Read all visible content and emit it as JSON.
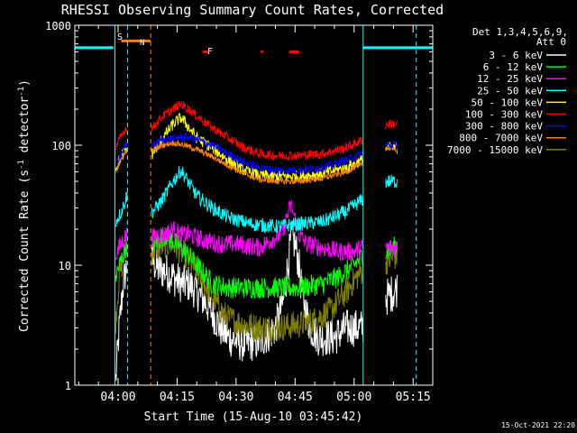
{
  "chart_data": {
    "type": "line",
    "title": "RHESSI Observing Summary Count Rates, Corrected",
    "xlabel": "Start Time (15-Aug-10 03:45:42)",
    "ylabel_parts": [
      "Corrected Count Rate (s",
      "-1",
      " detector",
      "-1",
      ")"
    ],
    "yscale": "log",
    "ylim": [
      1,
      1000
    ],
    "y_ticks": [
      {
        "value": 1,
        "label": "1"
      },
      {
        "value": 10,
        "label": "10"
      },
      {
        "value": 100,
        "label": "100"
      },
      {
        "value": 1000,
        "label": "1000"
      }
    ],
    "xlim_min": [
      -11.0,
      80.0
    ],
    "x_ticks": [
      {
        "min": 0,
        "label": "04:00"
      },
      {
        "min": 15,
        "label": "04:15"
      },
      {
        "min": 30,
        "label": "04:30"
      },
      {
        "min": 45,
        "label": "04:45"
      },
      {
        "min": 60,
        "label": "05:00"
      },
      {
        "min": 75,
        "label": "05:15"
      }
    ],
    "legend_header": [
      "Det 1,3,4,5,6,9,",
      "Att 0"
    ],
    "legend_position": "right",
    "data_gaps_min": [
      [
        2.4,
        8.5
      ],
      [
        62.3,
        68.0
      ]
    ],
    "series": [
      {
        "name": "3 - 6 keV",
        "color": "#ffffff",
        "noise": 0.16,
        "points": [
          [
            -0.6,
            1.1
          ],
          [
            0.3,
            3
          ],
          [
            1.2,
            6.5
          ],
          [
            2.2,
            10
          ],
          [
            8.8,
            11
          ],
          [
            9.5,
            10
          ],
          [
            10.5,
            9
          ],
          [
            12,
            9
          ],
          [
            14,
            8
          ],
          [
            16,
            7
          ],
          [
            18,
            7
          ],
          [
            20,
            6
          ],
          [
            22,
            5
          ],
          [
            24,
            4
          ],
          [
            26,
            3
          ],
          [
            28,
            2.5
          ],
          [
            32,
            2.2
          ],
          [
            36,
            2.3
          ],
          [
            40,
            3
          ],
          [
            42,
            5
          ],
          [
            43,
            9
          ],
          [
            44,
            17
          ],
          [
            45,
            15
          ],
          [
            46,
            10
          ],
          [
            47,
            5
          ],
          [
            49,
            3
          ],
          [
            51,
            2.5
          ],
          [
            55,
            2.5
          ],
          [
            58,
            3
          ],
          [
            60,
            3
          ],
          [
            62,
            3
          ],
          [
            68.5,
            5.5
          ],
          [
            70,
            6
          ],
          [
            71,
            6.5
          ]
        ]
      },
      {
        "name": "6 - 12 keV",
        "color": "#00ff00",
        "noise": 0.09,
        "points": [
          [
            -0.6,
            8
          ],
          [
            0.3,
            10
          ],
          [
            1.2,
            12
          ],
          [
            2.2,
            15
          ],
          [
            8.8,
            15
          ],
          [
            10,
            16
          ],
          [
            12,
            18
          ],
          [
            14,
            16
          ],
          [
            16,
            14
          ],
          [
            18,
            12
          ],
          [
            20,
            10
          ],
          [
            24,
            7
          ],
          [
            28,
            6.5
          ],
          [
            34,
            6.5
          ],
          [
            40,
            6.5
          ],
          [
            46,
            6.5
          ],
          [
            52,
            7
          ],
          [
            56,
            8
          ],
          [
            60,
            10
          ],
          [
            62,
            12
          ],
          [
            68.5,
            13
          ],
          [
            70,
            14
          ],
          [
            71,
            15
          ]
        ]
      },
      {
        "name": "12 - 25 keV",
        "color": "#ff00ff",
        "noise": 0.08,
        "points": [
          [
            -0.6,
            12
          ],
          [
            0.3,
            14
          ],
          [
            1.2,
            16
          ],
          [
            2.2,
            18
          ],
          [
            8.8,
            17
          ],
          [
            10,
            18
          ],
          [
            12,
            18
          ],
          [
            14,
            20
          ],
          [
            15,
            19
          ],
          [
            16,
            18
          ],
          [
            18,
            18
          ],
          [
            22,
            16
          ],
          [
            26,
            15
          ],
          [
            30,
            15
          ],
          [
            36,
            14
          ],
          [
            40,
            17
          ],
          [
            42,
            19
          ],
          [
            43,
            26
          ],
          [
            44,
            32
          ],
          [
            45,
            24
          ],
          [
            46,
            18
          ],
          [
            48,
            15
          ],
          [
            52,
            14
          ],
          [
            56,
            13
          ],
          [
            60,
            13
          ],
          [
            62,
            14
          ],
          [
            68.5,
            14
          ],
          [
            71,
            14
          ]
        ]
      },
      {
        "name": "25 - 50 keV",
        "color": "#00ffff",
        "noise": 0.06,
        "points": [
          [
            -0.6,
            23
          ],
          [
            0.3,
            26
          ],
          [
            1.2,
            30
          ],
          [
            2.2,
            38
          ],
          [
            8.8,
            28
          ],
          [
            11,
            34
          ],
          [
            14,
            50
          ],
          [
            16,
            62
          ],
          [
            17,
            55
          ],
          [
            20,
            38
          ],
          [
            24,
            30
          ],
          [
            28,
            25
          ],
          [
            34,
            22
          ],
          [
            40,
            21
          ],
          [
            46,
            22
          ],
          [
            52,
            23
          ],
          [
            58,
            28
          ],
          [
            62,
            35
          ],
          [
            66,
            45
          ],
          [
            68.5,
            50
          ],
          [
            71,
            50
          ]
        ]
      },
      {
        "name": "50 - 100 keV",
        "color": "#ffff00",
        "noise": 0.05,
        "points": [
          [
            -0.6,
            65
          ],
          [
            0.3,
            75
          ],
          [
            1.2,
            85
          ],
          [
            2.2,
            95
          ],
          [
            8.8,
            85
          ],
          [
            11,
            110
          ],
          [
            14,
            150
          ],
          [
            16,
            170
          ],
          [
            17,
            155
          ],
          [
            20,
            115
          ],
          [
            24,
            95
          ],
          [
            28,
            75
          ],
          [
            32,
            62
          ],
          [
            36,
            56
          ],
          [
            40,
            55
          ],
          [
            46,
            55
          ],
          [
            52,
            58
          ],
          [
            58,
            65
          ],
          [
            62,
            75
          ],
          [
            66,
            85
          ],
          [
            68.5,
            95
          ],
          [
            71,
            95
          ]
        ]
      },
      {
        "name": "100 - 300 keV",
        "color": "#ff0000",
        "noise": 0.04,
        "points": [
          [
            -0.6,
            95
          ],
          [
            0.3,
            110
          ],
          [
            1.2,
            125
          ],
          [
            2.2,
            140
          ],
          [
            8.8,
            140
          ],
          [
            11,
            170
          ],
          [
            14,
            200
          ],
          [
            16,
            220
          ],
          [
            17,
            210
          ],
          [
            20,
            175
          ],
          [
            24,
            140
          ],
          [
            28,
            115
          ],
          [
            32,
            95
          ],
          [
            36,
            85
          ],
          [
            40,
            82
          ],
          [
            46,
            82
          ],
          [
            52,
            85
          ],
          [
            58,
            95
          ],
          [
            62,
            110
          ],
          [
            66,
            130
          ],
          [
            68.5,
            150
          ],
          [
            71,
            150
          ]
        ]
      },
      {
        "name": "300 - 800 keV",
        "color": "#0000ff",
        "noise": 0.035,
        "points": [
          [
            -0.6,
            70
          ],
          [
            0.3,
            80
          ],
          [
            1.2,
            90
          ],
          [
            2.2,
            100
          ],
          [
            8.8,
            100
          ],
          [
            11,
            110
          ],
          [
            14,
            115
          ],
          [
            17,
            118
          ],
          [
            20,
            112
          ],
          [
            24,
            100
          ],
          [
            28,
            85
          ],
          [
            32,
            72
          ],
          [
            36,
            65
          ],
          [
            40,
            62
          ],
          [
            46,
            62
          ],
          [
            52,
            65
          ],
          [
            58,
            75
          ],
          [
            62,
            85
          ],
          [
            66,
            95
          ],
          [
            68.5,
            100
          ],
          [
            71,
            100
          ]
        ]
      },
      {
        "name": "800 - 7000 keV",
        "color": "#ff8000",
        "noise": 0.025,
        "points": [
          [
            -0.6,
            60
          ],
          [
            0.3,
            70
          ],
          [
            1.2,
            80
          ],
          [
            2.2,
            90
          ],
          [
            8.8,
            90
          ],
          [
            11,
            100
          ],
          [
            14,
            105
          ],
          [
            17,
            100
          ],
          [
            20,
            92
          ],
          [
            24,
            80
          ],
          [
            28,
            68
          ],
          [
            32,
            58
          ],
          [
            36,
            52
          ],
          [
            40,
            50
          ],
          [
            46,
            50
          ],
          [
            52,
            53
          ],
          [
            58,
            60
          ],
          [
            62,
            70
          ],
          [
            66,
            85
          ],
          [
            68.5,
            95
          ],
          [
            71,
            95
          ]
        ]
      },
      {
        "name": "7000 - 15000 keV",
        "color": "#808000",
        "noise": 0.12,
        "points": [
          [
            -0.6,
            3.5
          ],
          [
            0.3,
            8
          ],
          [
            1.2,
            11
          ],
          [
            2.2,
            14
          ],
          [
            8.8,
            13
          ],
          [
            10,
            14
          ],
          [
            12,
            15
          ],
          [
            14,
            15
          ],
          [
            16,
            13
          ],
          [
            18,
            11
          ],
          [
            20,
            9
          ],
          [
            22,
            7
          ],
          [
            24,
            5.5
          ],
          [
            26,
            4.2
          ],
          [
            28,
            3.6
          ],
          [
            32,
            3.2
          ],
          [
            36,
            3.0
          ],
          [
            40,
            3.0
          ],
          [
            46,
            3.2
          ],
          [
            50,
            3.5
          ],
          [
            54,
            4.2
          ],
          [
            58,
            6
          ],
          [
            60,
            7.5
          ],
          [
            62,
            9
          ],
          [
            68.5,
            11
          ],
          [
            71,
            12
          ]
        ]
      }
    ],
    "markers": [
      {
        "label": "S",
        "color": "#ff8000"
      },
      {
        "label": "N",
        "color": "#00ffff"
      },
      {
        "label": "F",
        "color": "#ff0000"
      }
    ],
    "saa_bars": [
      {
        "from": -11,
        "to": -1.2,
        "y": 650,
        "color": "#00ffff"
      },
      {
        "from": 62.3,
        "to": 80,
        "y": 650,
        "color": "#00ffff"
      },
      {
        "from": 0.8,
        "to": 8.3,
        "y": 740,
        "color": "#ff8000"
      },
      {
        "from": 21.5,
        "to": 23.0,
        "y": 600,
        "color": "#ff0000"
      },
      {
        "from": 36.3,
        "to": 37.0,
        "y": 600,
        "color": "#ff0000"
      },
      {
        "from": 43.5,
        "to": 46.0,
        "y": 600,
        "color": "#ff0000"
      }
    ],
    "solid_vlines": [
      {
        "x": -0.8,
        "color": "#00ffff"
      },
      {
        "x": 62.3,
        "color": "#00ffff"
      }
    ],
    "dashed_vlines": [
      {
        "x": 2.4,
        "color": "#00ffff"
      },
      {
        "x": 8.3,
        "color": "#ff8000"
      },
      {
        "x": 75.8,
        "color": "#00ffff"
      }
    ],
    "footer_timestamp": "15-Oct-2021 22:20"
  }
}
